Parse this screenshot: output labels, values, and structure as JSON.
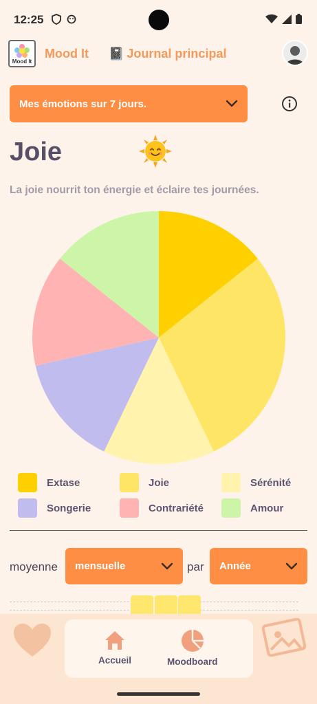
{
  "status_bar": {
    "time": "12:25"
  },
  "header": {
    "logo_text": "Mood It",
    "app_title": "Mood It",
    "journal_emoji": "📓",
    "journal_label": "Journal principal"
  },
  "period_select": {
    "value": "Mes émotions sur 7 jours."
  },
  "emotion": {
    "title": "Joie",
    "description": "La joie nourrit ton énergie et éclaire tes journées."
  },
  "chart_data": {
    "type": "pie",
    "categories": [
      "Extase",
      "Joie",
      "Sérénité",
      "Songerie",
      "Contrariété",
      "Amour"
    ],
    "values": [
      1,
      2,
      1,
      1,
      1,
      1
    ],
    "colors": [
      "#ffd000",
      "#ffe566",
      "#fff3ad",
      "#c0bdee",
      "#ffb3b3",
      "#cdf5a8"
    ],
    "start_angle_deg": 0,
    "legend": "bottom"
  },
  "average": {
    "label": "moyenne",
    "period_value": "mensuelle",
    "par_label": "par",
    "group_value": "Année"
  },
  "nav": {
    "home_label": "Accueil",
    "moodboard_label": "Moodboard"
  },
  "colors": {
    "accent": "#fe8e44",
    "background": "#fdf3ea"
  }
}
